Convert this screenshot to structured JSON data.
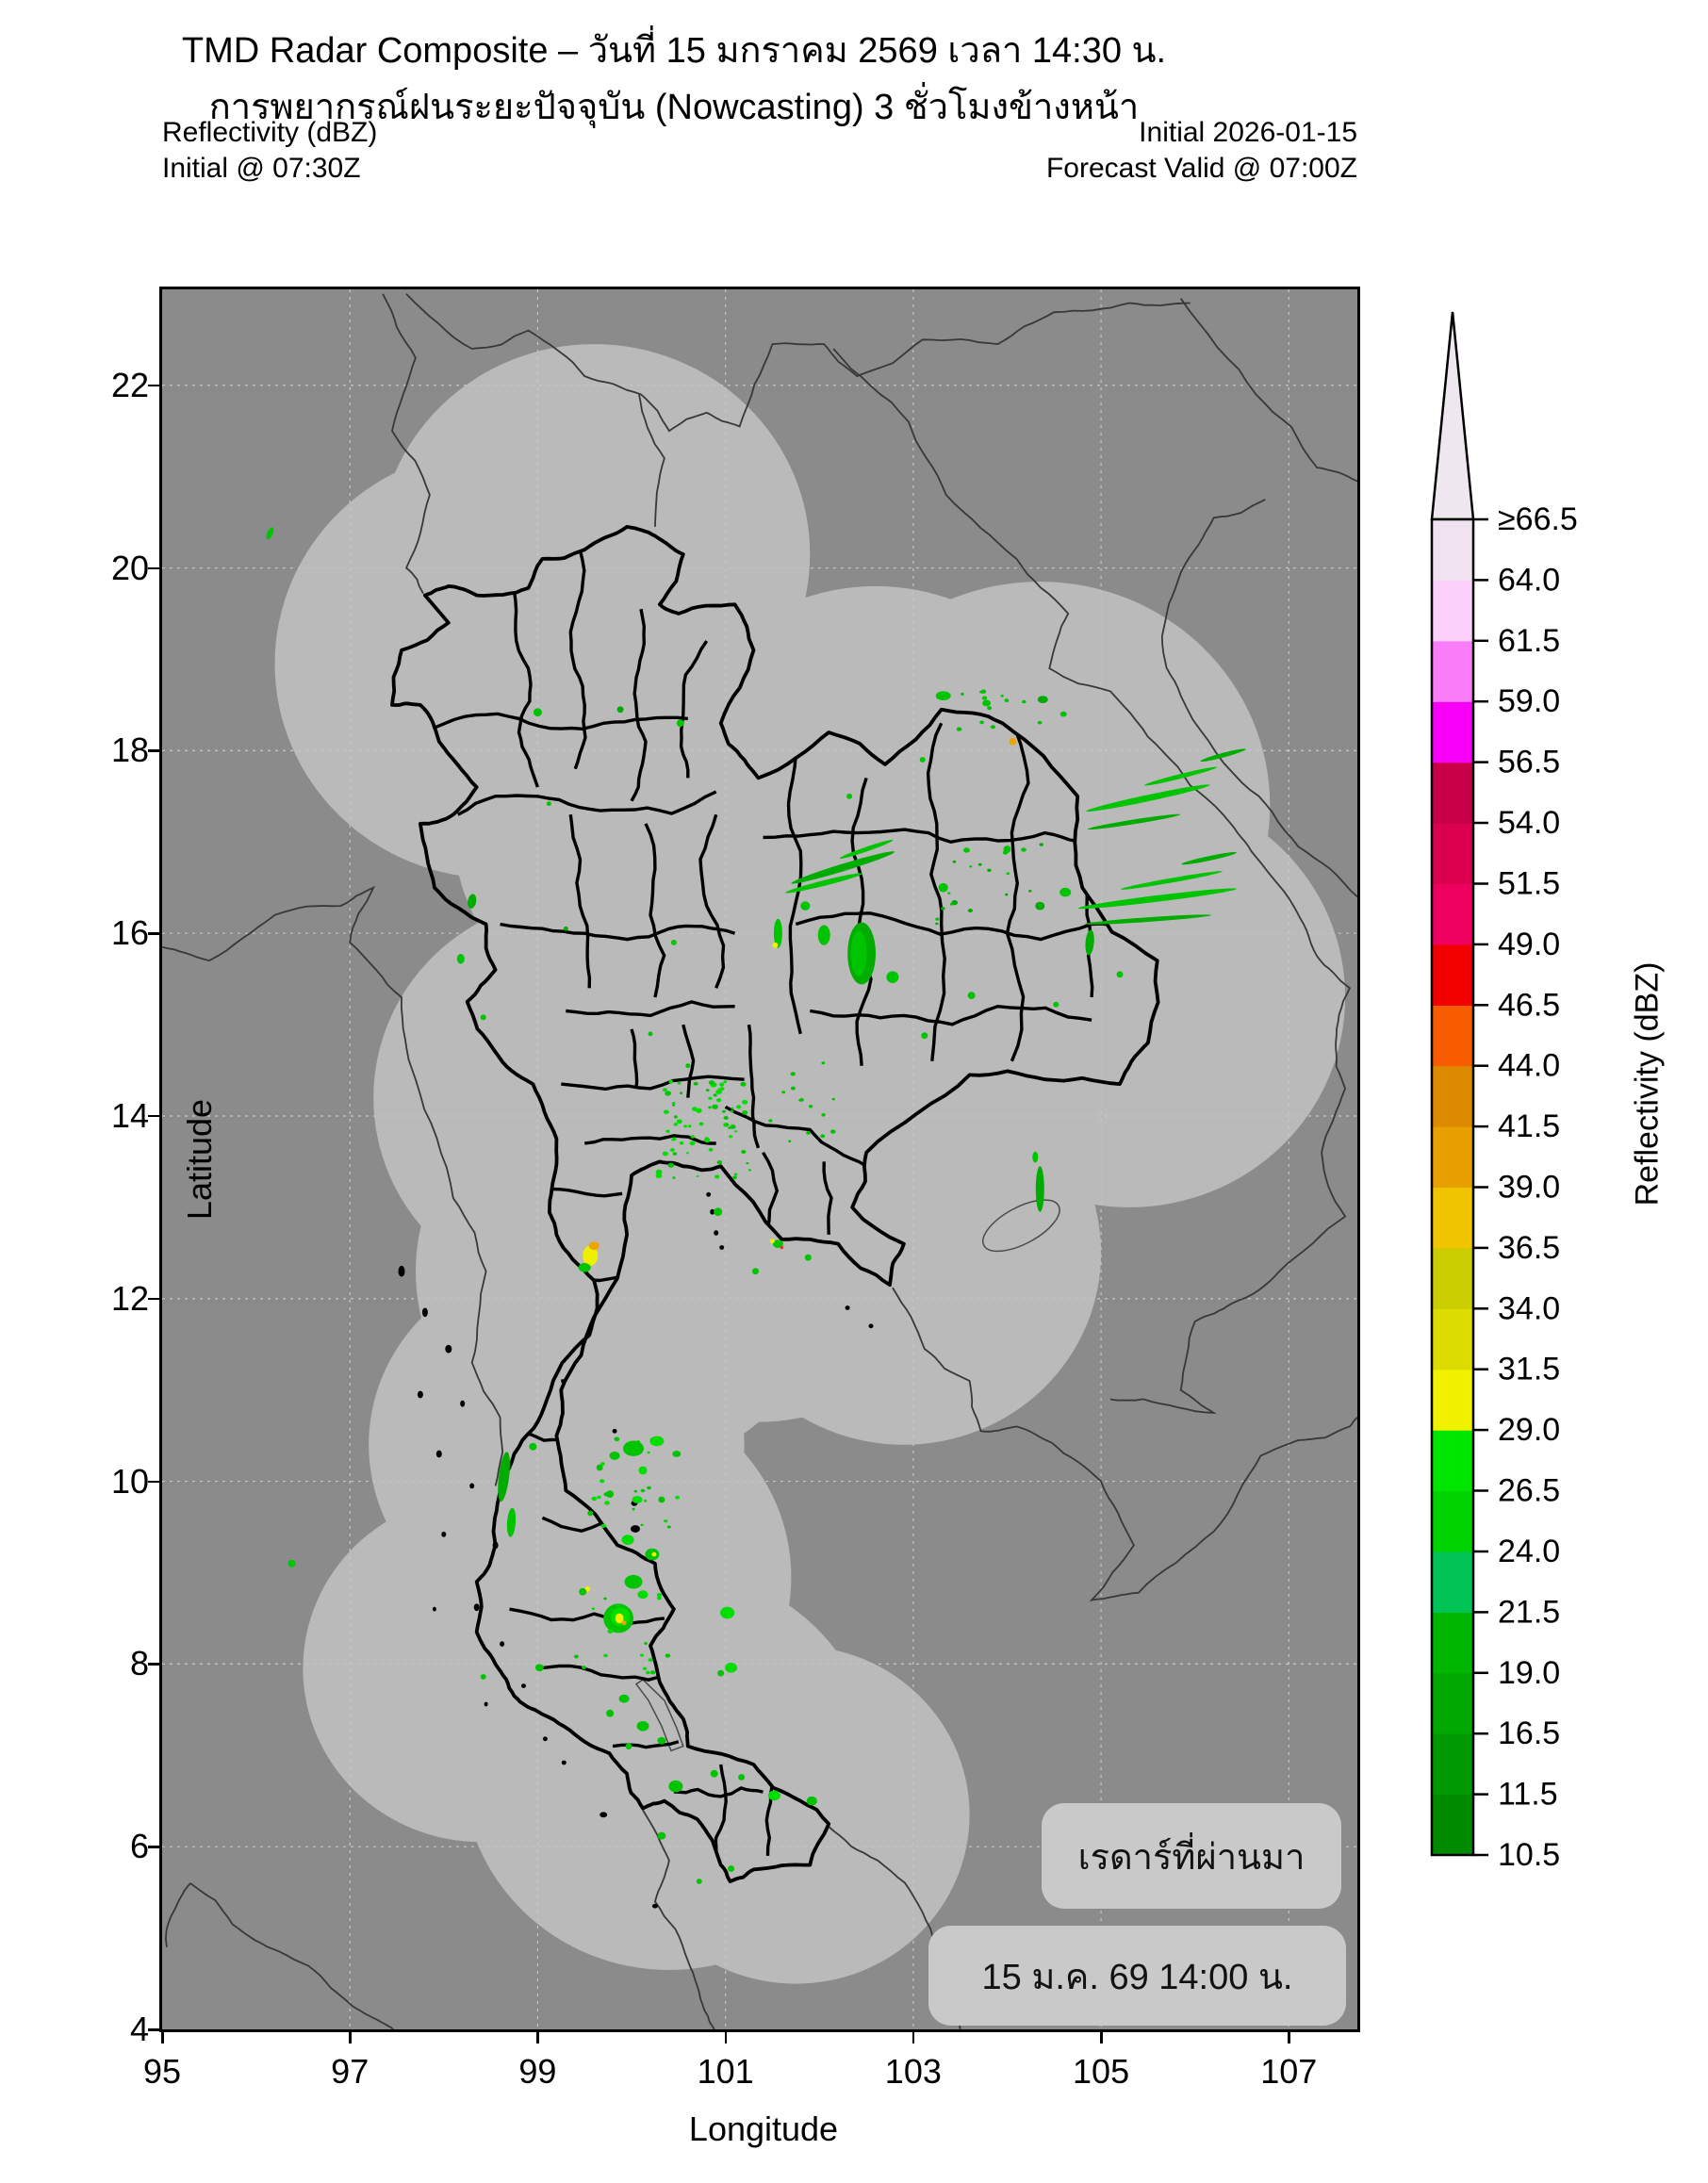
{
  "title": {
    "line1": "TMD Radar Composite – วันที่ 15 มกราคม 2569 เวลา 14:30 น.",
    "line2": "การพยากรณ์ฝนระยะปัจจุบัน (Nowcasting) 3 ชั่วโมงข้างหน้า"
  },
  "annotations": {
    "top_left_line1": "Reflectivity (dBZ)",
    "top_left_line2": "Initial @ 07:30Z",
    "top_right_line1": "Initial 2026-01-15",
    "top_right_line2": "Forecast Valid @ 07:00Z"
  },
  "overlay_badges": {
    "line1": "เรดาร์ที่ผ่านมา",
    "line2": "15 ม.ค. 69 14:00 น."
  },
  "axes": {
    "x_label": "Longitude",
    "y_label": "Latitude",
    "x_ticks": [
      95,
      97,
      99,
      101,
      103,
      105,
      107
    ],
    "y_ticks": [
      22,
      20,
      18,
      16,
      14,
      12,
      10,
      8,
      6,
      4
    ],
    "lon_range": [
      95,
      107.73
    ],
    "lat_range": [
      4,
      23.05
    ]
  },
  "colorbar": {
    "label": "Reflectivity (dBZ)",
    "tick_labels": [
      "≥66.5",
      "64.0",
      "61.5",
      "59.0",
      "56.5",
      "54.0",
      "51.5",
      "49.0",
      "46.5",
      "44.0",
      "41.5",
      "39.0",
      "36.5",
      "34.0",
      "31.5",
      "29.0",
      "26.5",
      "24.0",
      "21.5",
      "19.0",
      "16.5",
      "11.5",
      "10.5"
    ],
    "segment_colors_bottom_to_top": [
      "#008A00",
      "#009800",
      "#00A800",
      "#00B600",
      "#00C455",
      "#00D400",
      "#00E600",
      "#F2F200",
      "#DCDC00",
      "#CACE00",
      "#F0C400",
      "#E8A000",
      "#DC8A00",
      "#F85C00",
      "#F20000",
      "#EE005E",
      "#DB0050",
      "#C70047",
      "#F800F8",
      "#F97CF9",
      "#FBD0FB",
      "#F0E2F0"
    ],
    "over_arrow_color": "#EFE7EF"
  },
  "map_colors": {
    "background": "#8B8B8B",
    "radar_coverage": "#BABABA",
    "grid": "#C6C6C6",
    "border_thick": "#000000",
    "border_thin": "#383838",
    "island_fill": "#000000",
    "badge_bg": "#C9C9C9"
  },
  "chart_data": {
    "type": "heatmap",
    "units": "dBZ",
    "title": "TMD Radar Composite reflectivity nowcast over Thailand",
    "boundaries_dbz": [
      10.5,
      11.5,
      16.5,
      19.0,
      21.5,
      24.0,
      26.5,
      29.0,
      31.5,
      34.0,
      36.5,
      39.0,
      41.5,
      44.0,
      46.5,
      49.0,
      51.5,
      54.0,
      56.5,
      59.0,
      61.5,
      64.0,
      66.5
    ],
    "echo_color_classes": {
      "g1": "#009400",
      "g2": "#00AC00",
      "g3": "#00C400",
      "g4": "#00DE00",
      "y": "#EFEF00",
      "o": "#EFA400",
      "r": "#E03030"
    },
    "radar_coverage_circles": [
      {
        "lon": 99.6,
        "lat": 20.15,
        "r": 2.3
      },
      {
        "lon": 98.55,
        "lat": 18.95,
        "r": 2.35
      },
      {
        "lon": 100.3,
        "lat": 17.15,
        "r": 2.2
      },
      {
        "lon": 102.6,
        "lat": 17.5,
        "r": 2.3
      },
      {
        "lon": 104.35,
        "lat": 17.4,
        "r": 2.45
      },
      {
        "lon": 105.3,
        "lat": 15.3,
        "r": 2.3
      },
      {
        "lon": 103.0,
        "lat": 15.0,
        "r": 2.3
      },
      {
        "lon": 99.45,
        "lat": 14.2,
        "r": 2.2
      },
      {
        "lon": 100.6,
        "lat": 13.75,
        "r": 2.2
      },
      {
        "lon": 101.35,
        "lat": 12.85,
        "r": 2.2
      },
      {
        "lon": 99.9,
        "lat": 12.3,
        "r": 2.2
      },
      {
        "lon": 102.9,
        "lat": 12.5,
        "r": 2.1
      },
      {
        "lon": 99.2,
        "lat": 10.4,
        "r": 2.0
      },
      {
        "lon": 99.6,
        "lat": 8.95,
        "r": 2.1
      },
      {
        "lon": 98.4,
        "lat": 7.95,
        "r": 1.9
      },
      {
        "lon": 100.4,
        "lat": 6.85,
        "r": 2.2
      },
      {
        "lon": 101.75,
        "lat": 6.35,
        "r": 1.85
      }
    ],
    "echoes": [
      [
        96.15,
        20.38,
        0.06,
        0.14,
        25,
        "g3"
      ],
      [
        99.0,
        18.42,
        0.09,
        0.09,
        0,
        "g3"
      ],
      [
        99.88,
        18.45,
        0.07,
        0.07,
        0,
        "g2"
      ],
      [
        100.52,
        18.3,
        0.08,
        0.08,
        0,
        "g3"
      ],
      [
        99.12,
        17.42,
        0.05,
        0.05,
        0,
        "g3"
      ],
      [
        98.3,
        16.35,
        0.09,
        0.16,
        10,
        "g2"
      ],
      [
        98.18,
        15.72,
        0.08,
        0.11,
        0,
        "g3"
      ],
      [
        98.42,
        15.08,
        0.06,
        0.06,
        0,
        "g3"
      ],
      [
        100.45,
        15.9,
        0.06,
        0.06,
        0,
        "g3"
      ],
      [
        99.3,
        16.05,
        0.05,
        0.05,
        0,
        "g2"
      ],
      [
        103.32,
        18.6,
        0.16,
        0.1,
        0,
        "g3"
      ],
      [
        103.78,
        18.52,
        0.09,
        0.07,
        0,
        "g3"
      ],
      [
        104.38,
        18.56,
        0.11,
        0.08,
        0,
        "g2"
      ],
      [
        104.6,
        18.4,
        0.07,
        0.06,
        0,
        "g3"
      ],
      [
        104.06,
        18.1,
        0.08,
        0.08,
        45,
        "o"
      ],
      [
        103.1,
        17.9,
        0.06,
        0.06,
        0,
        "g3"
      ],
      [
        102.32,
        17.5,
        0.06,
        0.06,
        0,
        "g3"
      ],
      [
        105.5,
        17.48,
        1.35,
        0.07,
        -12,
        "g3"
      ],
      [
        105.35,
        17.22,
        1.0,
        0.05,
        -9,
        "g2"
      ],
      [
        105.85,
        17.72,
        0.8,
        0.05,
        -14,
        "g3"
      ],
      [
        106.3,
        17.95,
        0.5,
        0.05,
        -15,
        "g2"
      ],
      [
        105.6,
        16.38,
        1.7,
        0.07,
        -7,
        "g3"
      ],
      [
        105.5,
        16.15,
        1.35,
        0.05,
        -4,
        "g2"
      ],
      [
        105.75,
        16.58,
        1.1,
        0.05,
        -10,
        "g3"
      ],
      [
        106.15,
        16.82,
        0.6,
        0.05,
        -12,
        "g2"
      ],
      [
        104.62,
        16.45,
        0.12,
        0.1,
        0,
        "g3"
      ],
      [
        102.25,
        16.72,
        1.15,
        0.08,
        -17,
        "g2"
      ],
      [
        102.05,
        16.55,
        0.85,
        0.06,
        -14,
        "g3"
      ],
      [
        102.5,
        16.92,
        0.6,
        0.05,
        -19,
        "g3"
      ],
      [
        101.85,
        16.3,
        0.1,
        0.1,
        0,
        "g3"
      ],
      [
        102.45,
        15.78,
        0.3,
        0.68,
        0,
        "g2"
      ],
      [
        102.42,
        15.78,
        0.17,
        0.5,
        0,
        "g3"
      ],
      [
        102.05,
        15.98,
        0.13,
        0.22,
        0,
        "g3"
      ],
      [
        102.78,
        15.52,
        0.13,
        0.13,
        0,
        "g3"
      ],
      [
        101.56,
        16.0,
        0.09,
        0.32,
        0,
        "g3"
      ],
      [
        101.53,
        15.87,
        0.06,
        0.06,
        0,
        "y"
      ],
      [
        103.32,
        16.5,
        0.1,
        0.1,
        0,
        "g3"
      ],
      [
        104.0,
        16.92,
        0.08,
        0.08,
        0,
        "g3"
      ],
      [
        104.35,
        16.3,
        0.1,
        0.09,
        0,
        "g2"
      ],
      [
        104.88,
        15.9,
        0.09,
        0.28,
        5,
        "g2"
      ],
      [
        103.62,
        15.32,
        0.08,
        0.08,
        0,
        "g3"
      ],
      [
        103.12,
        14.88,
        0.07,
        0.07,
        0,
        "g3"
      ],
      [
        104.52,
        15.22,
        0.06,
        0.06,
        0,
        "g3"
      ],
      [
        105.2,
        15.55,
        0.07,
        0.07,
        0,
        "g3"
      ],
      [
        104.35,
        13.2,
        0.09,
        0.5,
        0,
        "g2"
      ],
      [
        104.3,
        13.55,
        0.06,
        0.12,
        0,
        "g3"
      ],
      [
        99.56,
        12.47,
        0.16,
        0.22,
        0,
        "y"
      ],
      [
        99.6,
        12.58,
        0.11,
        0.09,
        0,
        "o"
      ],
      [
        99.5,
        12.34,
        0.13,
        0.1,
        0,
        "g3"
      ],
      [
        100.92,
        12.95,
        0.09,
        0.09,
        0,
        "g3"
      ],
      [
        101.56,
        12.6,
        0.11,
        0.09,
        0,
        "g3"
      ],
      [
        101.5,
        12.63,
        0.05,
        0.05,
        0,
        "y"
      ],
      [
        101.6,
        12.56,
        0.035,
        0.035,
        0,
        "r"
      ],
      [
        101.32,
        12.3,
        0.07,
        0.07,
        0,
        "g3"
      ],
      [
        101.88,
        12.45,
        0.07,
        0.07,
        0,
        "g3"
      ],
      [
        100.2,
        14.9,
        0.05,
        0.05,
        0,
        "g3"
      ],
      [
        100.6,
        14.55,
        0.05,
        0.05,
        0,
        "g3"
      ],
      [
        96.38,
        9.1,
        0.08,
        0.08,
        0,
        "g3"
      ],
      [
        98.64,
        10.05,
        0.11,
        0.55,
        7,
        "g2"
      ],
      [
        98.72,
        9.55,
        0.09,
        0.32,
        4,
        "g3"
      ],
      [
        98.95,
        10.38,
        0.08,
        0.08,
        0,
        "g3"
      ],
      [
        100.02,
        10.36,
        0.22,
        0.17,
        0,
        "g3"
      ],
      [
        100.27,
        10.44,
        0.15,
        0.11,
        0,
        "g4"
      ],
      [
        99.82,
        10.28,
        0.11,
        0.09,
        0,
        "g3"
      ],
      [
        100.48,
        10.3,
        0.09,
        0.07,
        0,
        "g3"
      ],
      [
        99.66,
        10.15,
        0.07,
        0.07,
        0,
        "g3"
      ],
      [
        100.12,
        10.12,
        0.09,
        0.09,
        0,
        "g4"
      ],
      [
        99.77,
        9.86,
        0.08,
        0.08,
        0,
        "g3"
      ],
      [
        100.06,
        9.8,
        0.11,
        0.08,
        0,
        "g4"
      ],
      [
        100.32,
        9.8,
        0.07,
        0.07,
        0,
        "g3"
      ],
      [
        99.56,
        9.65,
        0.06,
        0.06,
        0,
        "g3"
      ],
      [
        99.96,
        9.36,
        0.13,
        0.11,
        0,
        "g4"
      ],
      [
        100.22,
        9.2,
        0.15,
        0.13,
        0,
        "g3"
      ],
      [
        100.24,
        9.2,
        0.05,
        0.05,
        0,
        "y"
      ],
      [
        100.02,
        8.9,
        0.19,
        0.15,
        0,
        "g3"
      ],
      [
        100.12,
        8.76,
        0.11,
        0.09,
        0,
        "g4"
      ],
      [
        99.86,
        8.5,
        0.32,
        0.32,
        0,
        "g3"
      ],
      [
        99.88,
        8.52,
        0.2,
        0.2,
        0,
        "g4"
      ],
      [
        99.87,
        8.5,
        0.09,
        0.11,
        0,
        "y"
      ],
      [
        99.92,
        8.45,
        0.05,
        0.05,
        0,
        "o"
      ],
      [
        99.53,
        8.82,
        0.06,
        0.06,
        0,
        "y"
      ],
      [
        99.48,
        8.79,
        0.08,
        0.08,
        0,
        "g3"
      ],
      [
        101.02,
        8.56,
        0.15,
        0.13,
        0,
        "g4"
      ],
      [
        101.06,
        7.96,
        0.13,
        0.11,
        0,
        "g4"
      ],
      [
        100.95,
        7.9,
        0.07,
        0.07,
        0,
        "g3"
      ],
      [
        99.02,
        7.96,
        0.09,
        0.08,
        0,
        "g3"
      ],
      [
        98.42,
        7.86,
        0.06,
        0.06,
        0,
        "g3"
      ],
      [
        99.92,
        7.62,
        0.11,
        0.09,
        0,
        "g3"
      ],
      [
        99.77,
        7.46,
        0.08,
        0.08,
        0,
        "g3"
      ],
      [
        100.12,
        7.32,
        0.13,
        0.11,
        0,
        "g3"
      ],
      [
        100.32,
        7.16,
        0.09,
        0.08,
        0,
        "g3"
      ],
      [
        99.97,
        7.1,
        0.07,
        0.07,
        0,
        "g3"
      ],
      [
        100.47,
        6.66,
        0.15,
        0.13,
        0,
        "g3"
      ],
      [
        100.88,
        6.8,
        0.08,
        0.08,
        0,
        "g3"
      ],
      [
        101.17,
        6.76,
        0.07,
        0.07,
        0,
        "g3"
      ],
      [
        101.52,
        6.56,
        0.13,
        0.11,
        0,
        "g4"
      ],
      [
        101.92,
        6.5,
        0.11,
        0.1,
        0,
        "g3"
      ],
      [
        100.32,
        6.12,
        0.09,
        0.08,
        0,
        "g3"
      ],
      [
        101.06,
        5.76,
        0.07,
        0.07,
        0,
        "g3"
      ],
      [
        100.72,
        5.62,
        0.06,
        0.06,
        0,
        "g3"
      ]
    ],
    "speckle_fields": [
      {
        "lon0": 100.28,
        "lon1": 101.28,
        "lat0": 13.32,
        "lat1": 14.38,
        "count": 70,
        "colors": [
          "g3",
          "g4"
        ],
        "smin": 0.025,
        "smax": 0.07,
        "seed": 7
      },
      {
        "lon0": 101.3,
        "lon1": 102.3,
        "lat0": 13.7,
        "lat1": 14.6,
        "count": 14,
        "colors": [
          "g3"
        ],
        "smin": 0.03,
        "smax": 0.06,
        "seed": 11
      },
      {
        "lon0": 103.2,
        "lon1": 104.6,
        "lat0": 16.1,
        "lat1": 17.0,
        "count": 18,
        "colors": [
          "g2",
          "g3"
        ],
        "smin": 0.03,
        "smax": 0.07,
        "seed": 13
      },
      {
        "lon0": 103.4,
        "lon1": 104.8,
        "lat0": 18.2,
        "lat1": 18.75,
        "count": 12,
        "colors": [
          "g3"
        ],
        "smin": 0.03,
        "smax": 0.06,
        "seed": 17
      },
      {
        "lon0": 99.6,
        "lon1": 100.5,
        "lat0": 9.5,
        "lat1": 10.5,
        "count": 20,
        "colors": [
          "g3",
          "g4"
        ],
        "smin": 0.03,
        "smax": 0.06,
        "seed": 19
      },
      {
        "lon0": 99.4,
        "lon1": 100.4,
        "lat0": 7.9,
        "lat1": 8.8,
        "count": 16,
        "colors": [
          "g3",
          "g4"
        ],
        "smin": 0.03,
        "smax": 0.06,
        "seed": 23
      }
    ]
  }
}
